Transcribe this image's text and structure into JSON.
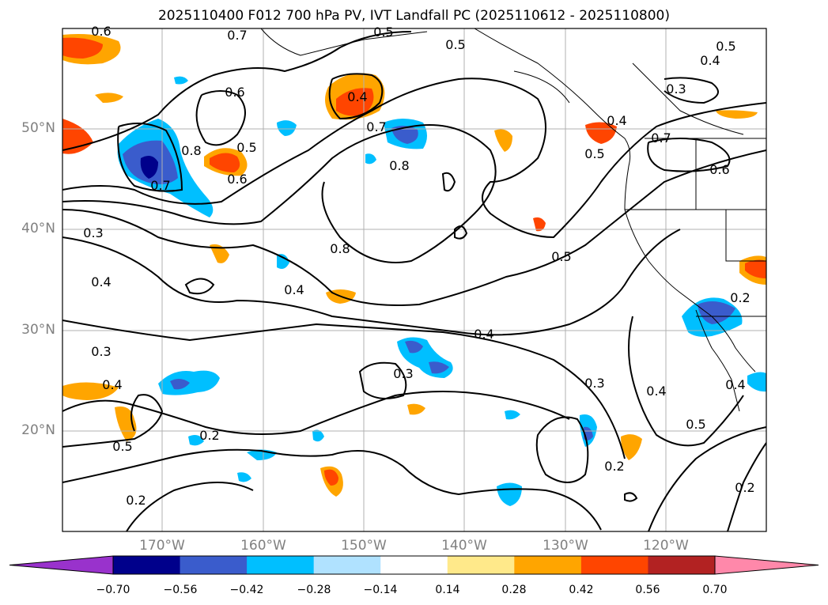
{
  "title": "2025110400 F012 700 hPa PV, IVT Landfall PC (2025110612 - 2025110800)",
  "lat_labels": [
    "50°N",
    "40°N",
    "30°N",
    "20°N"
  ],
  "lon_labels": [
    "170°W",
    "160°W",
    "150°W",
    "140°W",
    "130°W",
    "120°W"
  ],
  "contour_labels": [
    "0.6",
    "0.7",
    "0.5",
    "0.5",
    "0.5",
    "0.4",
    "0.6",
    "0.4",
    "0.3",
    "0.8",
    "0.5",
    "0.6",
    "0.7",
    "0.8",
    "0.4",
    "0.7",
    "0.5",
    "0.7",
    "0.6",
    "0.3",
    "0.4",
    "0.8",
    "0.4",
    "0.5",
    "0.4",
    "0.3",
    "0.4",
    "0.3",
    "0.4",
    "0.3",
    "0.4",
    "0.2",
    "0.5",
    "0.5",
    "0.2",
    "0.2",
    "0.2",
    "0.2"
  ],
  "colorbar": {
    "ticks": [
      "−0.70",
      "−0.56",
      "−0.42",
      "−0.28",
      "−0.14",
      "0.14",
      "0.28",
      "0.42",
      "0.56",
      "0.70"
    ],
    "colors": [
      "#9932cc",
      "#00008b",
      "#3a5ccc",
      "#00bfff",
      "#b0e2ff",
      "#ffffff",
      "#ffe98a",
      "#ffa500",
      "#ff4500",
      "#b22222",
      "#ff88aa"
    ]
  }
}
